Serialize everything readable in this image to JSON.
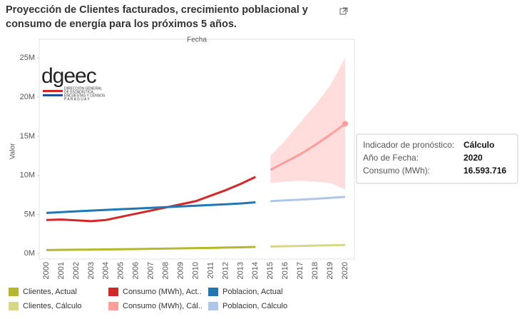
{
  "chart_data": {
    "type": "line",
    "title": "Proyección de Clientes facturados, crecimiento poblacional y consumo de energía para los próximos 5 años.",
    "x_axis_label": "Fecha",
    "y_axis_label": "Valor",
    "categories": [
      "2000",
      "2001",
      "2002",
      "2003",
      "2004",
      "2005",
      "2006",
      "2007",
      "2008",
      "2009",
      "2010",
      "2011",
      "2012",
      "2013",
      "2014",
      "2015",
      "2016",
      "2017",
      "2018",
      "2019",
      "2020"
    ],
    "ylim": [
      -700000,
      27400000
    ],
    "yticks": [
      {
        "value": 0,
        "label": "0M"
      },
      {
        "value": 5000000,
        "label": "5M"
      },
      {
        "value": 10000000,
        "label": "10M"
      },
      {
        "value": 15000000,
        "label": "15M"
      },
      {
        "value": 20000000,
        "label": "20M"
      },
      {
        "value": 25000000,
        "label": "25M"
      }
    ],
    "series": [
      {
        "name": "Clientes, Actual",
        "color": "#b5b82a",
        "values": [
          450000,
          480000,
          500000,
          510000,
          530000,
          550000,
          580000,
          610000,
          640000,
          670000,
          700000,
          730000,
          770000,
          810000,
          850000,
          null,
          null,
          null,
          null,
          null,
          null
        ]
      },
      {
        "name": "Clientes, Cálculo",
        "color": "#d6d886",
        "values": [
          null,
          null,
          null,
          null,
          null,
          null,
          null,
          null,
          null,
          null,
          null,
          null,
          null,
          null,
          null,
          900000,
          940000,
          980000,
          1020000,
          1060000,
          1100000
        ]
      },
      {
        "name": "Consumo (MWh), Act..",
        "color": "#d62728",
        "values": [
          4300000,
          4350000,
          4250000,
          4150000,
          4300000,
          4700000,
          5100000,
          5500000,
          5900000,
          6300000,
          6700000,
          7400000,
          8100000,
          8900000,
          9800000,
          null,
          null,
          null,
          null,
          null,
          null
        ]
      },
      {
        "name": "Consumo (MWh), Cál..",
        "color": "#ff9d9a",
        "values": [
          null,
          null,
          null,
          null,
          null,
          null,
          null,
          null,
          null,
          null,
          null,
          null,
          null,
          null,
          null,
          10700000,
          11700000,
          12700000,
          13900000,
          15200000,
          16593716
        ],
        "upper": [
          null,
          null,
          null,
          null,
          null,
          null,
          null,
          null,
          null,
          null,
          null,
          null,
          null,
          null,
          null,
          12500000,
          14500000,
          16800000,
          19000000,
          21500000,
          25000000
        ],
        "lower": [
          null,
          null,
          null,
          null,
          null,
          null,
          null,
          null,
          null,
          null,
          null,
          null,
          null,
          null,
          null,
          9000000,
          9200000,
          9300000,
          9200000,
          9000000,
          8200000
        ]
      },
      {
        "name": "Poblacion, Actual",
        "color": "#1f77b4",
        "values": [
          5200000,
          5300000,
          5400000,
          5490000,
          5580000,
          5670000,
          5760000,
          5850000,
          5940000,
          6030000,
          6120000,
          6210000,
          6300000,
          6400000,
          6550000,
          null,
          null,
          null,
          null,
          null,
          null
        ]
      },
      {
        "name": "Poblacion, Cálculo",
        "color": "#aec7e8",
        "values": [
          null,
          null,
          null,
          null,
          null,
          null,
          null,
          null,
          null,
          null,
          null,
          null,
          null,
          null,
          null,
          6700000,
          6800000,
          6900000,
          7000000,
          7120000,
          7250000
        ]
      }
    ],
    "logo": {
      "name": "dgeec",
      "lines": [
        "DIRECCIÓN GENERAL",
        "DE ESTADÍSTICA,",
        "ENCUESTAS Y CENSOS",
        "P A R A G U A Y"
      ]
    },
    "tooltip": [
      [
        "Indicador de pronóstico:",
        "Cálculo"
      ],
      [
        "Año de Fecha:",
        "2020"
      ],
      [
        "Consumo (MWh):",
        "16.593.716"
      ]
    ]
  }
}
